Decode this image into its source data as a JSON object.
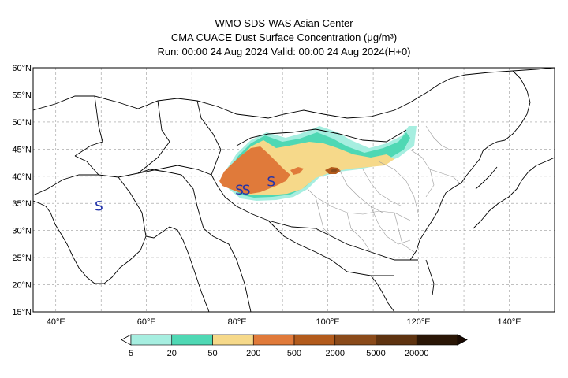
{
  "title": {
    "line1": "WMO SDS-WAS Asian Center",
    "line2": "CMA CUACE Dust Surface Concentration (μg/m³)",
    "line3": "Run: 00:00 24 Aug 2024    Valid: 00:00 24 Aug 2024(H+0)"
  },
  "map": {
    "lon_range": [
      35,
      150
    ],
    "lat_range": [
      15,
      60
    ],
    "lat_ticks": [
      "15°N",
      "20°N",
      "25°N",
      "30°N",
      "35°N",
      "40°N",
      "45°N",
      "50°N",
      "55°N",
      "60°N"
    ],
    "lat_values": [
      15,
      20,
      25,
      30,
      35,
      40,
      45,
      50,
      55,
      60
    ],
    "lon_ticks": [
      "40°E",
      "60°E",
      "80°E",
      "100°E",
      "120°E",
      "140°E"
    ],
    "lon_values": [
      40,
      60,
      80,
      100,
      120,
      140
    ],
    "gridlines": true,
    "storm_markers": [
      {
        "symbol": "S",
        "lon": 49.5,
        "lat": 34.5
      },
      {
        "symbol": "S",
        "lon": 80.5,
        "lat": 37.5
      },
      {
        "symbol": "S",
        "lon": 82.0,
        "lat": 37.5
      },
      {
        "symbol": "S",
        "lon": 87.5,
        "lat": 39.0
      }
    ]
  },
  "colorbar": {
    "labels": [
      "5",
      "20",
      "50",
      "200",
      "500",
      "2000",
      "5000",
      "20000"
    ],
    "colors": [
      "#a6eee0",
      "#4fd8b4",
      "#f6d98a",
      "#e07a3a",
      "#b25b1c",
      "#8a4a1a",
      "#5e3310",
      "#2a1606"
    ],
    "arrow_left_color": "#ffffff",
    "arrow_right_color": "#1a0a02"
  }
}
